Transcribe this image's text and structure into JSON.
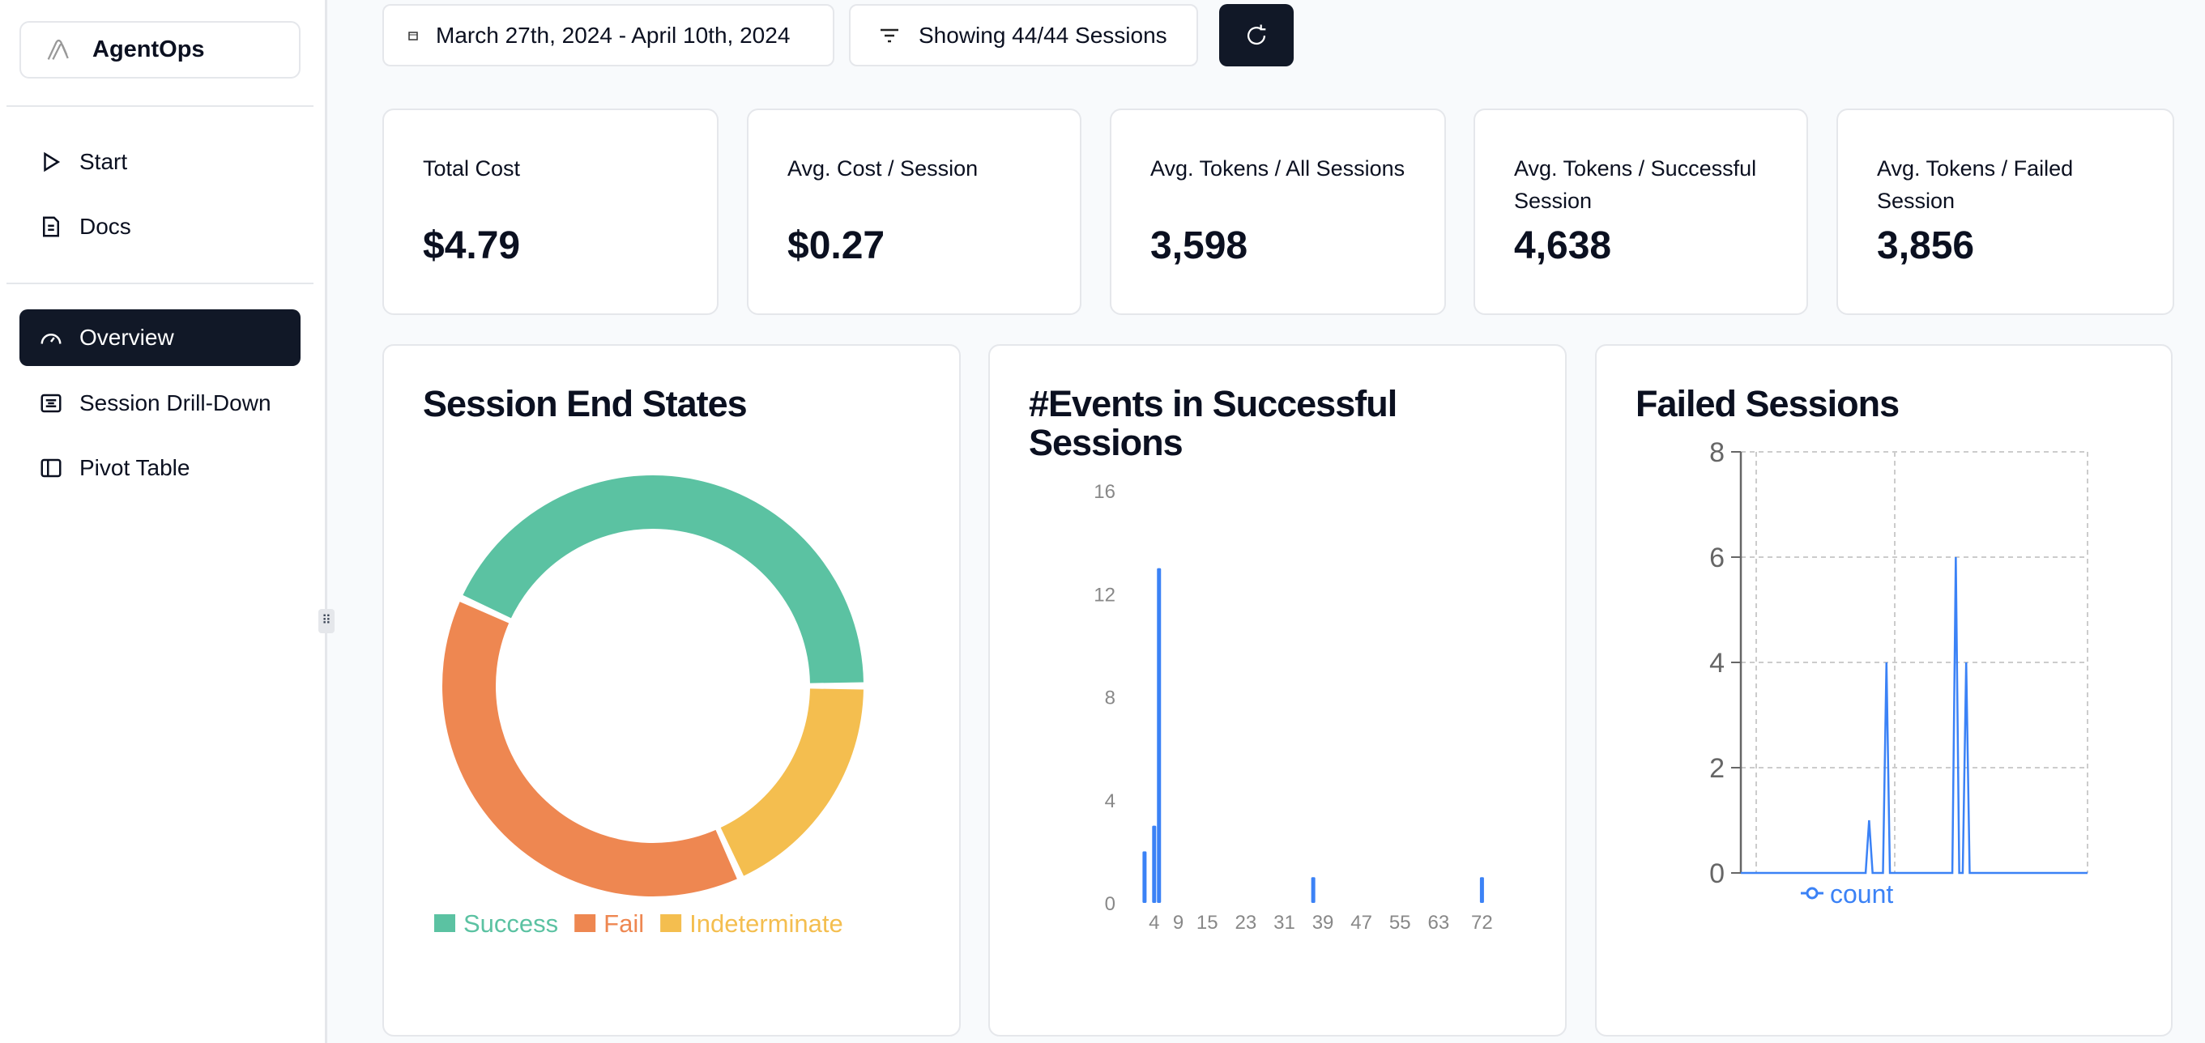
{
  "app": {
    "name": "AgentOps"
  },
  "sidebar": {
    "items": [
      {
        "label": "Start",
        "icon": "play-icon"
      },
      {
        "label": "Docs",
        "icon": "document-icon"
      },
      {
        "label": "Overview",
        "icon": "gauge-icon",
        "active": true
      },
      {
        "label": "Session Drill-Down",
        "icon": "list-icon"
      },
      {
        "label": "Pivot Table",
        "icon": "panel-icon"
      }
    ]
  },
  "toolbar": {
    "date_range": "March 27th, 2024 - April 10th, 2024",
    "filter": "Showing 44/44 Sessions",
    "refresh_icon": "refresh-icon"
  },
  "stats": [
    {
      "label": "Total Cost",
      "value": "$4.79"
    },
    {
      "label": "Avg. Cost / Session",
      "value": "$0.27"
    },
    {
      "label": "Avg. Tokens / All Sessions",
      "value": "3,598"
    },
    {
      "label": "Avg. Tokens / Successful Session",
      "value": "4,638"
    },
    {
      "label": "Avg. Tokens / Failed Session",
      "value": "3,856"
    }
  ],
  "colors": {
    "success": "#5BC2A2",
    "fail": "#EE8751",
    "indeterminate": "#F4BE4F",
    "series": "#3B82F6",
    "accent": "#111827"
  },
  "chart_data": [
    {
      "type": "pie",
      "title": "Session End States",
      "donut": true,
      "legend": "bottom",
      "categories": [
        "Success",
        "Fail",
        "Indeterminate"
      ],
      "values": [
        19,
        17,
        8
      ]
    },
    {
      "type": "bar",
      "title": "#Events in Successful Sessions",
      "xlim": [
        0,
        76
      ],
      "ylim": [
        0,
        16
      ],
      "yticks": [
        0,
        4,
        8,
        12,
        16
      ],
      "xticks": [
        4,
        9,
        15,
        23,
        31,
        39,
        47,
        55,
        63,
        72
      ],
      "x": [
        2,
        4,
        5,
        37,
        72
      ],
      "values": [
        2,
        3,
        13,
        1,
        1
      ]
    },
    {
      "type": "line",
      "title": "Failed Sessions",
      "ylim": [
        0,
        8
      ],
      "yticks": [
        0,
        2,
        4,
        6,
        8
      ],
      "grid": true,
      "legend": "bottom",
      "series": [
        {
          "name": "count",
          "points": [
            [
              0,
              0
            ],
            [
              36,
              0
            ],
            [
              37,
              1
            ],
            [
              38,
              0
            ],
            [
              41,
              0
            ],
            [
              42,
              4
            ],
            [
              43,
              0
            ],
            [
              61,
              0
            ],
            [
              62,
              6
            ],
            [
              63,
              0
            ],
            [
              64,
              0
            ],
            [
              65,
              4
            ],
            [
              66,
              0
            ],
            [
              100,
              0
            ]
          ]
        }
      ]
    }
  ]
}
